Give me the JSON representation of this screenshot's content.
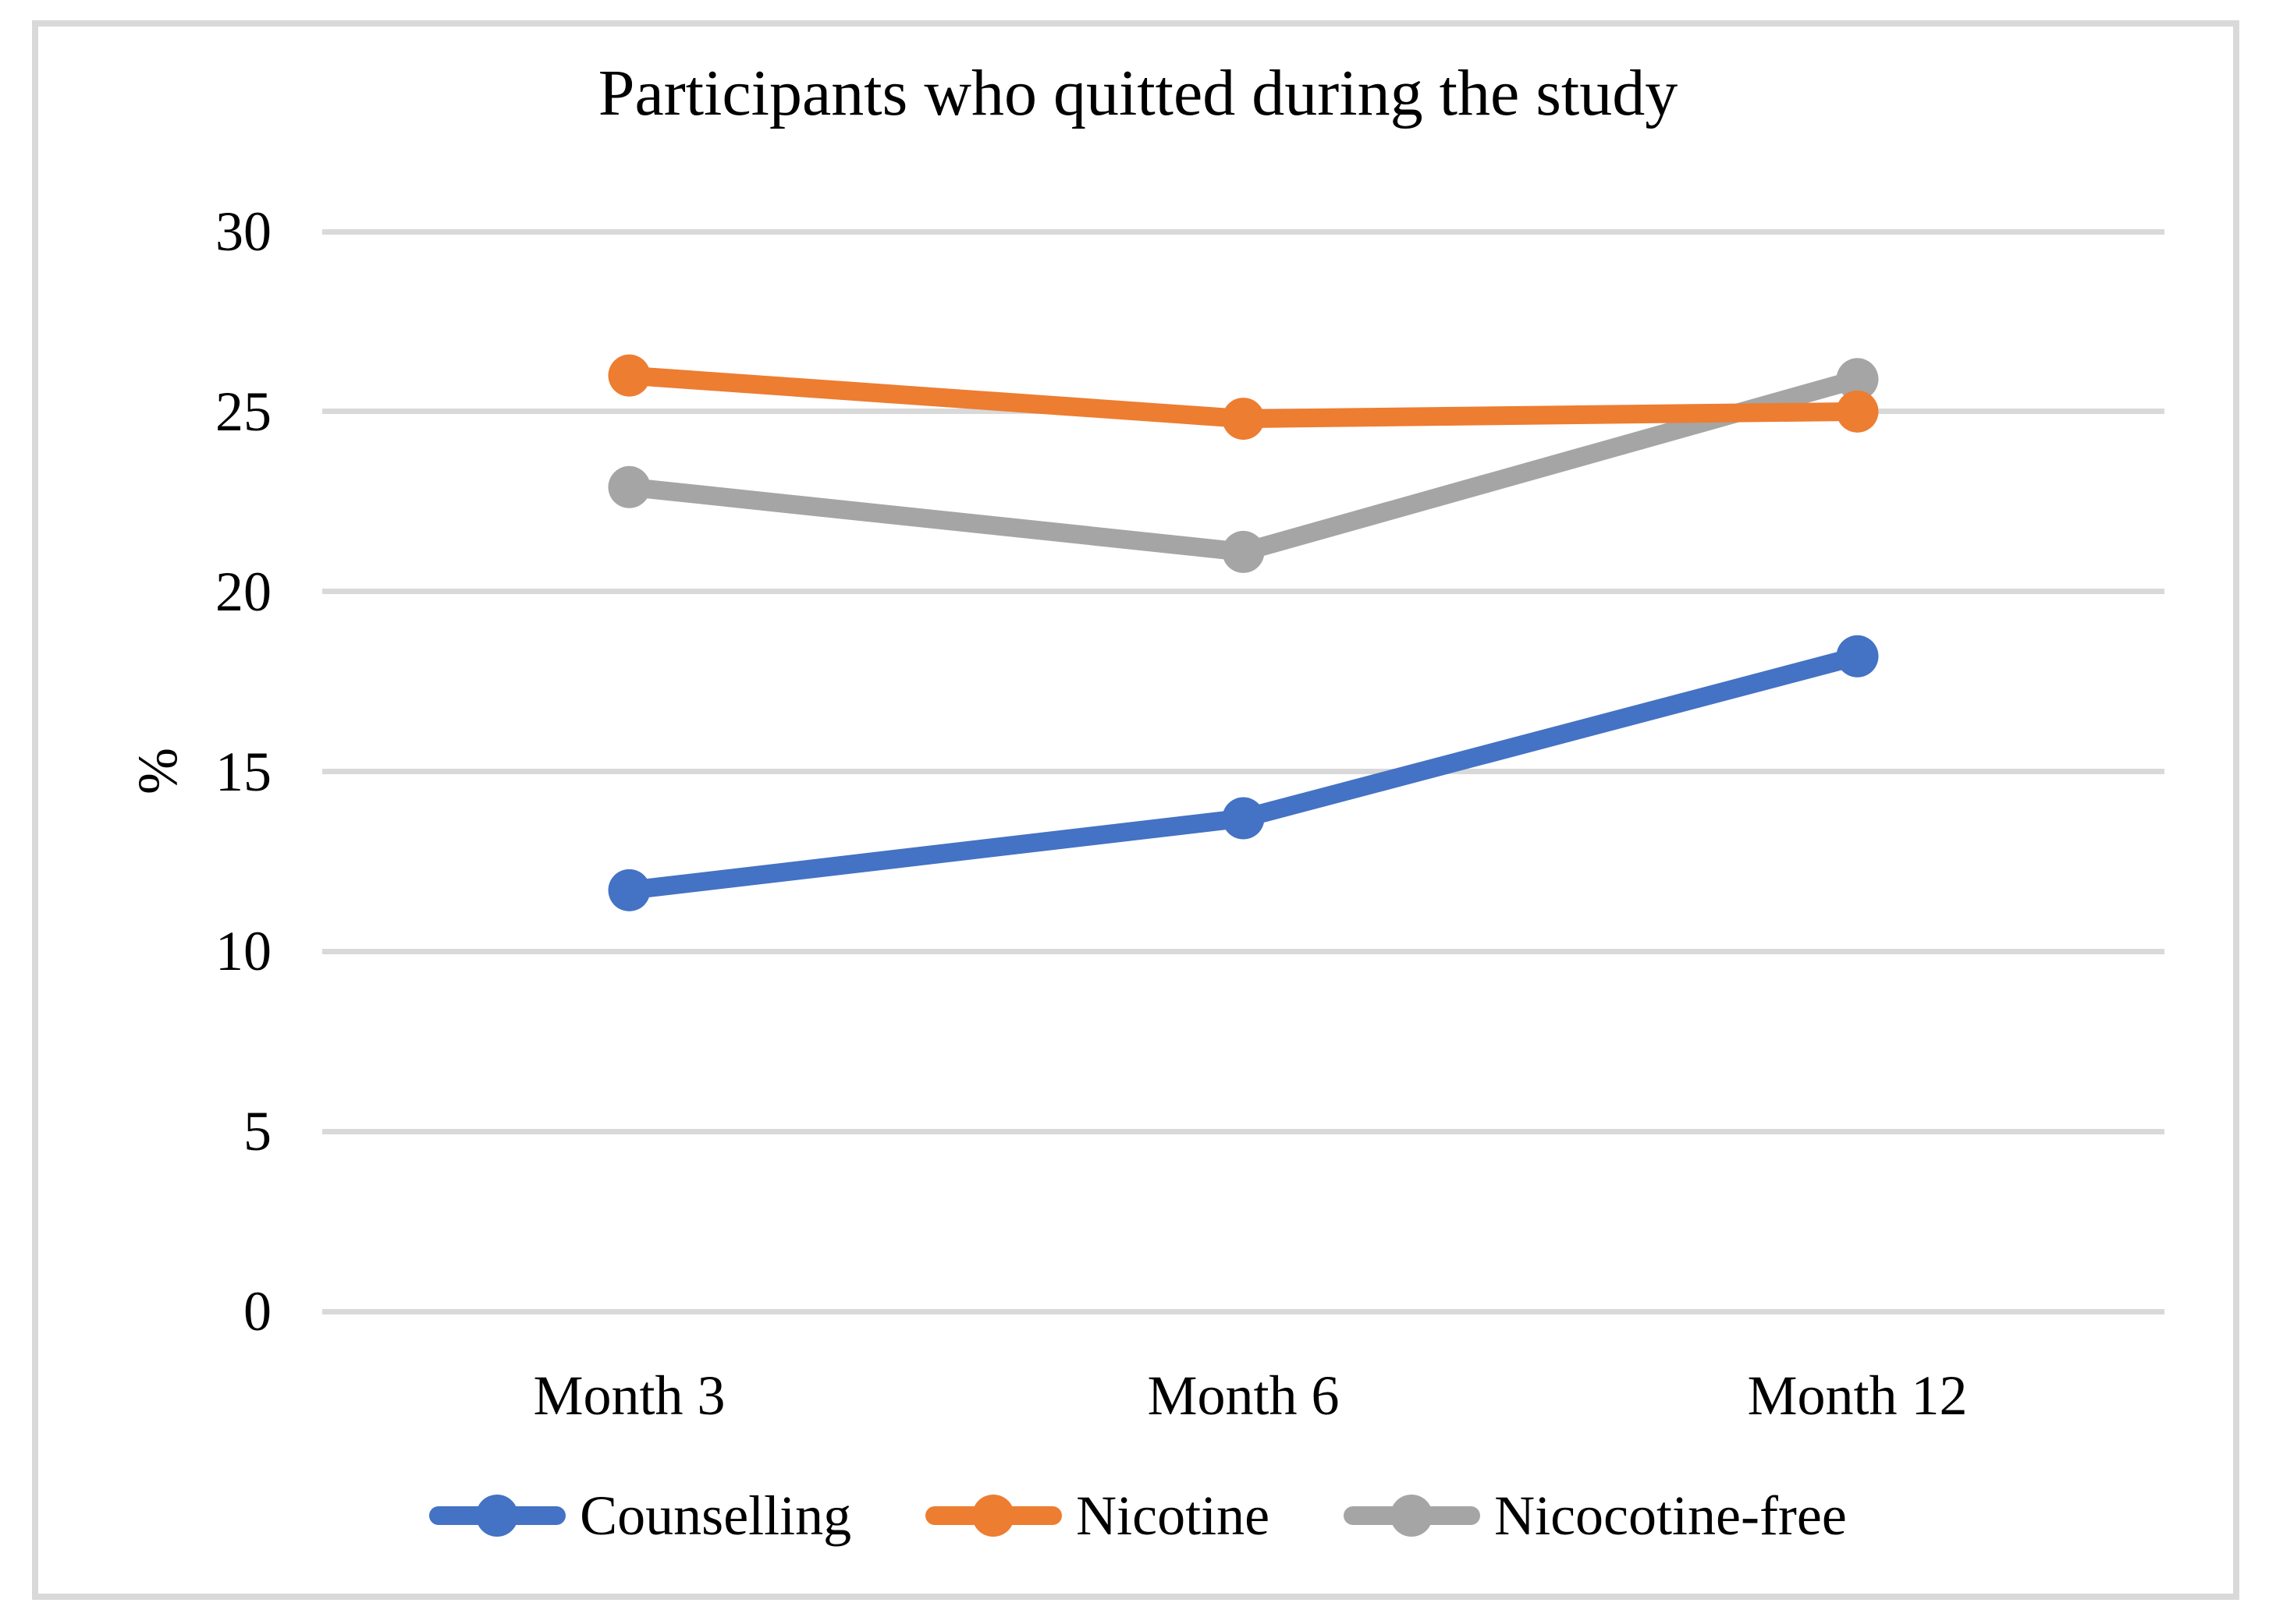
{
  "chart_data": {
    "type": "line",
    "title": "Participants who quitted during the study",
    "xlabel": "",
    "ylabel": "%",
    "categories": [
      "Month 3",
      "Month 6",
      "Month 12"
    ],
    "series": [
      {
        "name": "Counselling",
        "color": "#4472C4",
        "values": [
          11.7,
          13.7,
          18.2
        ]
      },
      {
        "name": "Nicotine",
        "color": "#ED7D31",
        "values": [
          26.0,
          24.8,
          25.0
        ]
      },
      {
        "name": "Nicocotine-free",
        "color": "#A5A5A5",
        "values": [
          22.9,
          21.1,
          25.9
        ]
      }
    ],
    "ylim": [
      0,
      30
    ],
    "yticks": [
      0,
      5,
      10,
      15,
      20,
      25,
      30
    ],
    "grid": "horizontal-only",
    "gridline_color": "#D9D9D9",
    "plot_border_color": "#D9D9D9",
    "legend_position": "bottom",
    "marker_style": "filled-circle"
  }
}
